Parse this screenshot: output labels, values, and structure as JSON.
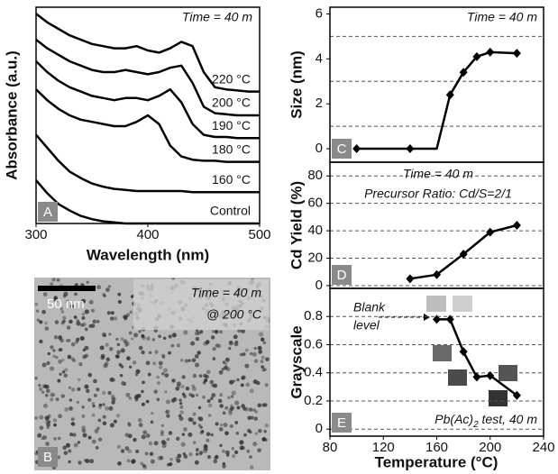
{
  "chart_data": [
    {
      "type": "line",
      "panel_label": "A",
      "annotation": "Time = 40 m",
      "x_label": "Wavelength (nm)",
      "y_label": "Absorbance (a.u.)",
      "xlim": [
        300,
        500
      ],
      "xticks": [
        300,
        400,
        500
      ],
      "ylim": [
        0,
        10
      ],
      "x": [
        300,
        310,
        320,
        330,
        340,
        350,
        360,
        370,
        380,
        390,
        400,
        410,
        420,
        430,
        440,
        450,
        460,
        470,
        480,
        490,
        500
      ],
      "series": [
        {
          "name": "220 °C",
          "color": "#000000",
          "values": [
            9.7,
            9.3,
            9.0,
            8.7,
            8.5,
            8.3,
            8.2,
            8.1,
            8.1,
            8.2,
            8.0,
            7.9,
            8.1,
            8.4,
            8.2,
            7.0,
            6.3,
            6.2,
            6.15,
            6.1,
            6.1
          ]
        },
        {
          "name": "200 °C",
          "color": "#000000",
          "values": [
            8.5,
            8.1,
            7.8,
            7.5,
            7.3,
            7.1,
            7.0,
            7.0,
            7.1,
            7.0,
            6.9,
            7.0,
            7.2,
            7.3,
            6.5,
            5.4,
            5.1,
            5.05,
            5.0,
            5.0,
            5.0
          ]
        },
        {
          "name": "190 °C",
          "color": "#000000",
          "values": [
            7.5,
            7.0,
            6.6,
            6.3,
            6.1,
            5.9,
            5.8,
            5.7,
            5.8,
            5.8,
            5.7,
            5.9,
            6.2,
            5.6,
            4.6,
            4.1,
            4.0,
            4.0,
            3.95,
            3.95,
            3.95
          ]
        },
        {
          "name": "180 °C",
          "color": "#000000",
          "values": [
            6.2,
            5.7,
            5.3,
            5.0,
            4.8,
            4.7,
            4.6,
            4.5,
            4.5,
            4.7,
            5.0,
            4.6,
            3.6,
            3.1,
            2.95,
            2.9,
            2.9,
            2.85,
            2.85,
            2.85,
            2.85
          ]
        },
        {
          "name": "160 °C",
          "color": "#000000",
          "values": [
            4.1,
            3.5,
            2.9,
            2.4,
            2.1,
            1.85,
            1.7,
            1.6,
            1.55,
            1.5,
            1.5,
            1.5,
            1.5,
            1.5,
            1.45,
            1.45,
            1.45,
            1.45,
            1.45,
            1.45,
            1.45
          ]
        },
        {
          "name": "Control",
          "color": "#000000",
          "values": [
            2.0,
            1.4,
            0.9,
            0.6,
            0.35,
            0.2,
            0.1,
            0.05,
            0,
            0,
            0,
            0,
            0,
            0,
            0,
            0,
            0,
            0,
            0,
            0,
            0
          ]
        }
      ]
    },
    {
      "type": "line",
      "panel_label": "C",
      "annotations": [
        "Time = 40 m"
      ],
      "y_label": "Size (nm)",
      "xlim": [
        80,
        240
      ],
      "ylim": [
        -0.6,
        6.3
      ],
      "yticks": [
        0,
        2,
        4,
        6
      ],
      "minor_grid": [
        1,
        3,
        5
      ],
      "markers": true,
      "x": [
        100,
        140,
        160,
        170,
        180,
        190,
        200,
        220
      ],
      "series": [
        {
          "color": "#000000",
          "values": [
            0,
            0,
            0,
            2.4,
            3.4,
            4.1,
            4.3,
            4.25
          ],
          "marked": [
            true,
            true,
            false,
            true,
            true,
            true,
            true,
            true
          ]
        }
      ]
    },
    {
      "type": "line",
      "panel_label": "D",
      "annotations": [
        "Time = 40 m",
        "Precursor Ratio: Cd/S=2/1"
      ],
      "y_label": "Cd Yield (%)",
      "xlim": [
        80,
        240
      ],
      "ylim": [
        -2,
        90
      ],
      "yticks": [
        0,
        20,
        40,
        60,
        80
      ],
      "grid": true,
      "markers": true,
      "x": [
        140,
        160,
        180,
        200,
        220
      ],
      "series": [
        {
          "color": "#000000",
          "values": [
            5,
            8,
            23,
            39,
            44
          ]
        }
      ]
    },
    {
      "type": "line",
      "panel_label": "E",
      "annotations": [
        "Blank",
        "level"
      ],
      "note_parts": [
        "Pb(Ac)",
        "2",
        " test, 40 m"
      ],
      "y_label": "Grayscale",
      "x_label": "Temperature (°C)",
      "xlim": [
        80,
        240
      ],
      "xticks": [
        80,
        120,
        160,
        200,
        240
      ],
      "ylim": [
        -0.05,
        1.0
      ],
      "yticks": [
        0,
        0.2,
        0.4,
        0.6,
        0.8
      ],
      "grid": true,
      "markers": true,
      "x": [
        160,
        170,
        180,
        190,
        200,
        220
      ],
      "series": [
        {
          "color": "#000000",
          "values": [
            0.78,
            0.78,
            0.55,
            0.37,
            0.38,
            0.24
          ]
        }
      ]
    }
  ],
  "image": {
    "scale_bar": "50 nm",
    "caption": [
      "Time = 40 m",
      "@ 200 °C"
    ],
    "panel_label": "B"
  }
}
